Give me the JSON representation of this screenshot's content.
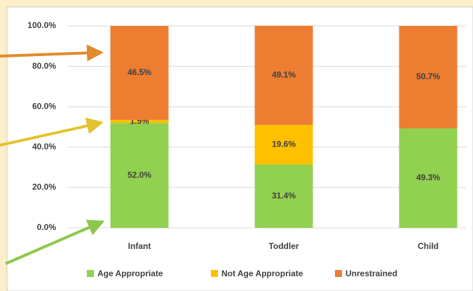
{
  "chart_data": {
    "type": "stacked_bar",
    "categories": [
      "Infant",
      "Toddler",
      "Child"
    ],
    "series": [
      {
        "name": "Age Appropriate",
        "color": "#92d050",
        "values": [
          52.0,
          31.4,
          49.3
        ],
        "value_labels": [
          "52.0%",
          "31.4%",
          "49.3%"
        ]
      },
      {
        "name": "Not Age Appropriate",
        "color": "#ffc000",
        "values": [
          1.5,
          19.6,
          0
        ],
        "value_labels": [
          "1.5%",
          "19.6%",
          null
        ]
      },
      {
        "name": "Unrestrained",
        "color": "#ed7d31",
        "values": [
          46.5,
          49.1,
          50.7
        ],
        "value_labels": [
          "46.5%",
          "49.1%",
          "50.7%"
        ]
      }
    ],
    "ylim": [
      0,
      100
    ],
    "yticks": [
      {
        "value": 0,
        "label": "0.0%"
      },
      {
        "value": 20,
        "label": "20.0%"
      },
      {
        "value": 40,
        "label": "40.0%"
      },
      {
        "value": 60,
        "label": "60.0%"
      },
      {
        "value": 80,
        "label": "80.0%"
      },
      {
        "value": 100,
        "label": "100.0%"
      }
    ],
    "grid": true,
    "legend": "bottom"
  }
}
